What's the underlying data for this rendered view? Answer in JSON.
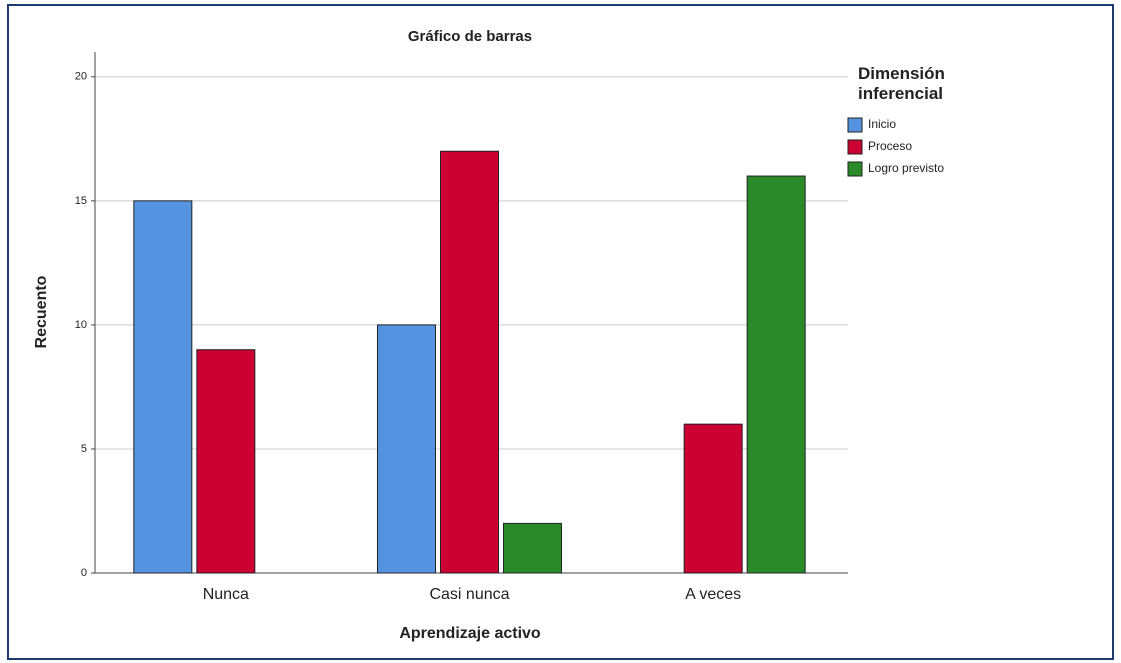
{
  "chart_data": {
    "type": "bar",
    "title": "Gráfico de barras",
    "x_label": "Aprendizaje activo",
    "y_label": "Recuento",
    "categories": [
      "Nunca",
      "Casi nunca",
      "A veces"
    ],
    "legend_title": "Dimensión inferencial",
    "series": [
      {
        "name": "Inicio",
        "color": "#5593e1",
        "values": [
          15,
          10,
          null
        ]
      },
      {
        "name": "Proceso",
        "color": "#cc0033",
        "values": [
          9,
          17,
          6
        ]
      },
      {
        "name": "Logro previsto",
        "color": "#2a8a2a",
        "values": [
          null,
          2,
          16
        ]
      }
    ],
    "ylim": [
      0,
      21
    ],
    "yticks": [
      0,
      5,
      10,
      15,
      20
    ],
    "grid": true,
    "legend": "right"
  }
}
